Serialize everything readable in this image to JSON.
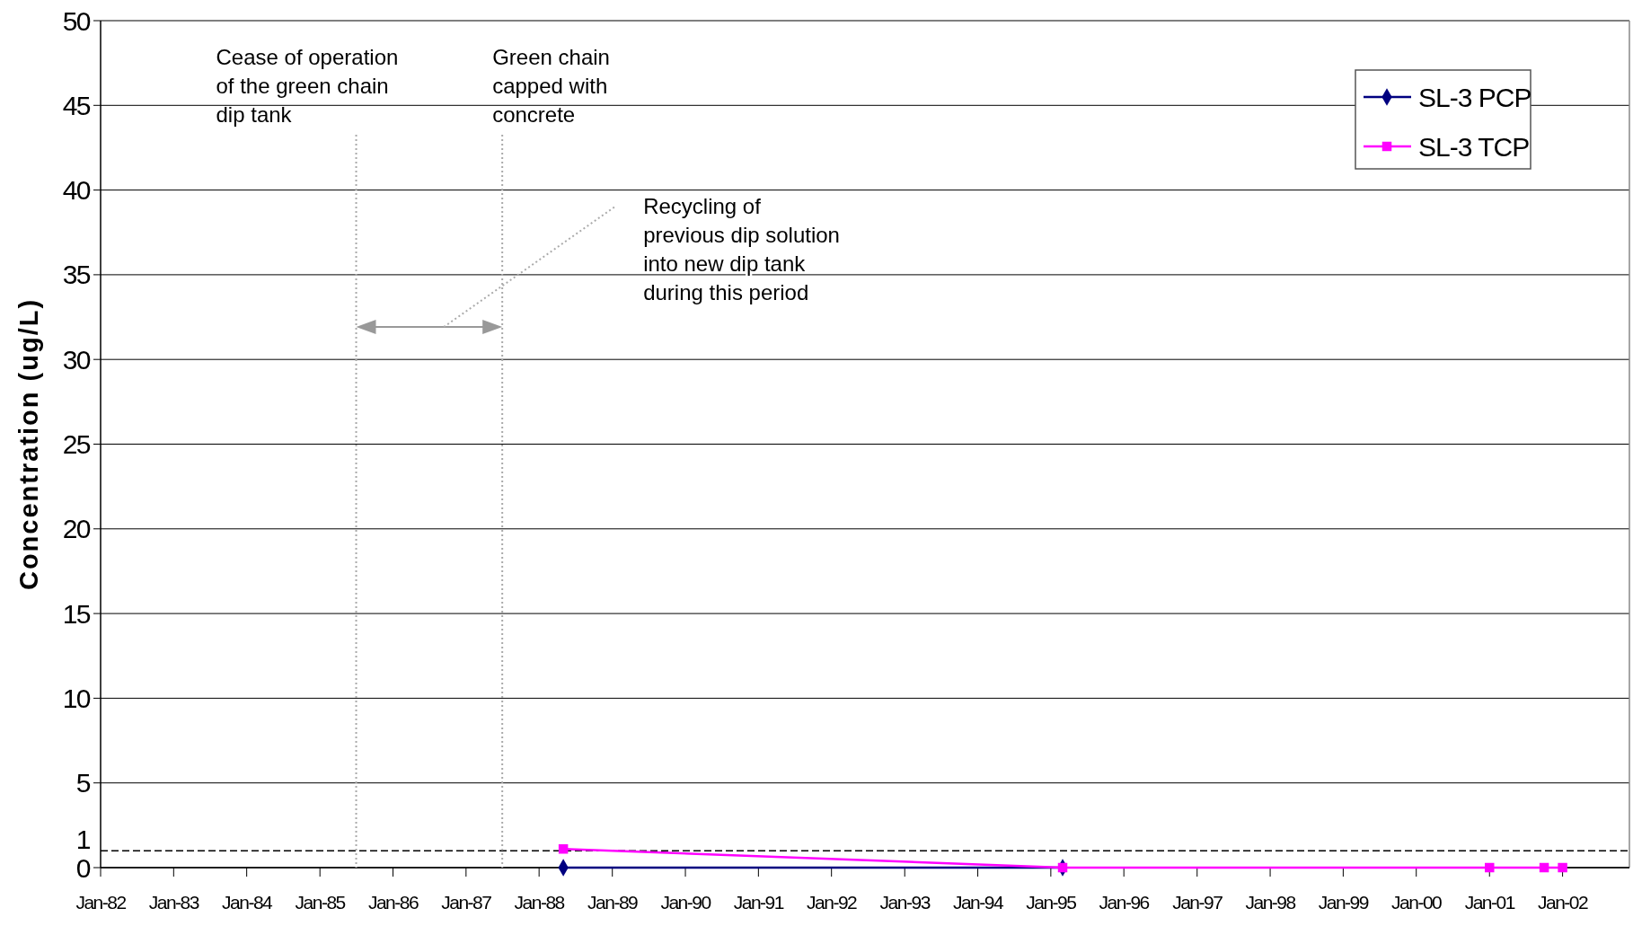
{
  "chart_data": {
    "type": "line",
    "ylabel": "Concentration (ug/L)",
    "x": [
      "1988-05",
      "1995-03",
      "2001-01",
      "2001-10",
      "2002-01"
    ],
    "series": [
      {
        "name": "SL-3 PCP",
        "color": "#000080",
        "marker": "diamond",
        "values": [
          0,
          0,
          null,
          null,
          null
        ]
      },
      {
        "name": "SL-3 TCP",
        "color": "#ff00ff",
        "marker": "square",
        "values": [
          1.1,
          0,
          0,
          0,
          0
        ]
      }
    ],
    "xlim": [
      "1982-01",
      "2002-12"
    ],
    "xticks": [
      {
        "value": "1982-01",
        "label": "Jan-82"
      },
      {
        "value": "1983-01",
        "label": "Jan-83"
      },
      {
        "value": "1984-01",
        "label": "Jan-84"
      },
      {
        "value": "1985-01",
        "label": "Jan-85"
      },
      {
        "value": "1986-01",
        "label": "Jan-86"
      },
      {
        "value": "1987-01",
        "label": "Jan-87"
      },
      {
        "value": "1988-01",
        "label": "Jan-88"
      },
      {
        "value": "1989-01",
        "label": "Jan-89"
      },
      {
        "value": "1990-01",
        "label": "Jan-90"
      },
      {
        "value": "1991-01",
        "label": "Jan-91"
      },
      {
        "value": "1992-01",
        "label": "Jan-92"
      },
      {
        "value": "1993-01",
        "label": "Jan-93"
      },
      {
        "value": "1994-01",
        "label": "Jan-94"
      },
      {
        "value": "1995-01",
        "label": "Jan-95"
      },
      {
        "value": "1996-01",
        "label": "Jan-96"
      },
      {
        "value": "1997-01",
        "label": "Jan-97"
      },
      {
        "value": "1998-01",
        "label": "Jan-98"
      },
      {
        "value": "1999-01",
        "label": "Jan-99"
      },
      {
        "value": "2000-01",
        "label": "Jan-00"
      },
      {
        "value": "2001-01",
        "label": "Jan-01"
      },
      {
        "value": "2002-01",
        "label": "Jan-02"
      }
    ],
    "ylim": [
      0,
      50
    ],
    "yticks": [
      0,
      5,
      10,
      15,
      20,
      25,
      30,
      35,
      40,
      45,
      50
    ],
    "grid": "y",
    "legend": "top right",
    "ref_lines": [
      {
        "axis": "y",
        "value": 1,
        "label": "1",
        "color": "#000000",
        "line_style": "dashed"
      },
      {
        "axis": "x",
        "value": "1985-07",
        "label": "Cease of operation\nof the green chain\ndip tank",
        "color": "#aaaaaa",
        "line_style": "dotted"
      },
      {
        "axis": "x",
        "value": "1987-07",
        "label": "Green chain\ncapped with\nconcrete",
        "color": "#aaaaaa",
        "line_style": "dotted"
      }
    ],
    "annotations": [
      "Recycling of\nprevious dip solution\ninto new dip tank\nduring this period"
    ]
  }
}
